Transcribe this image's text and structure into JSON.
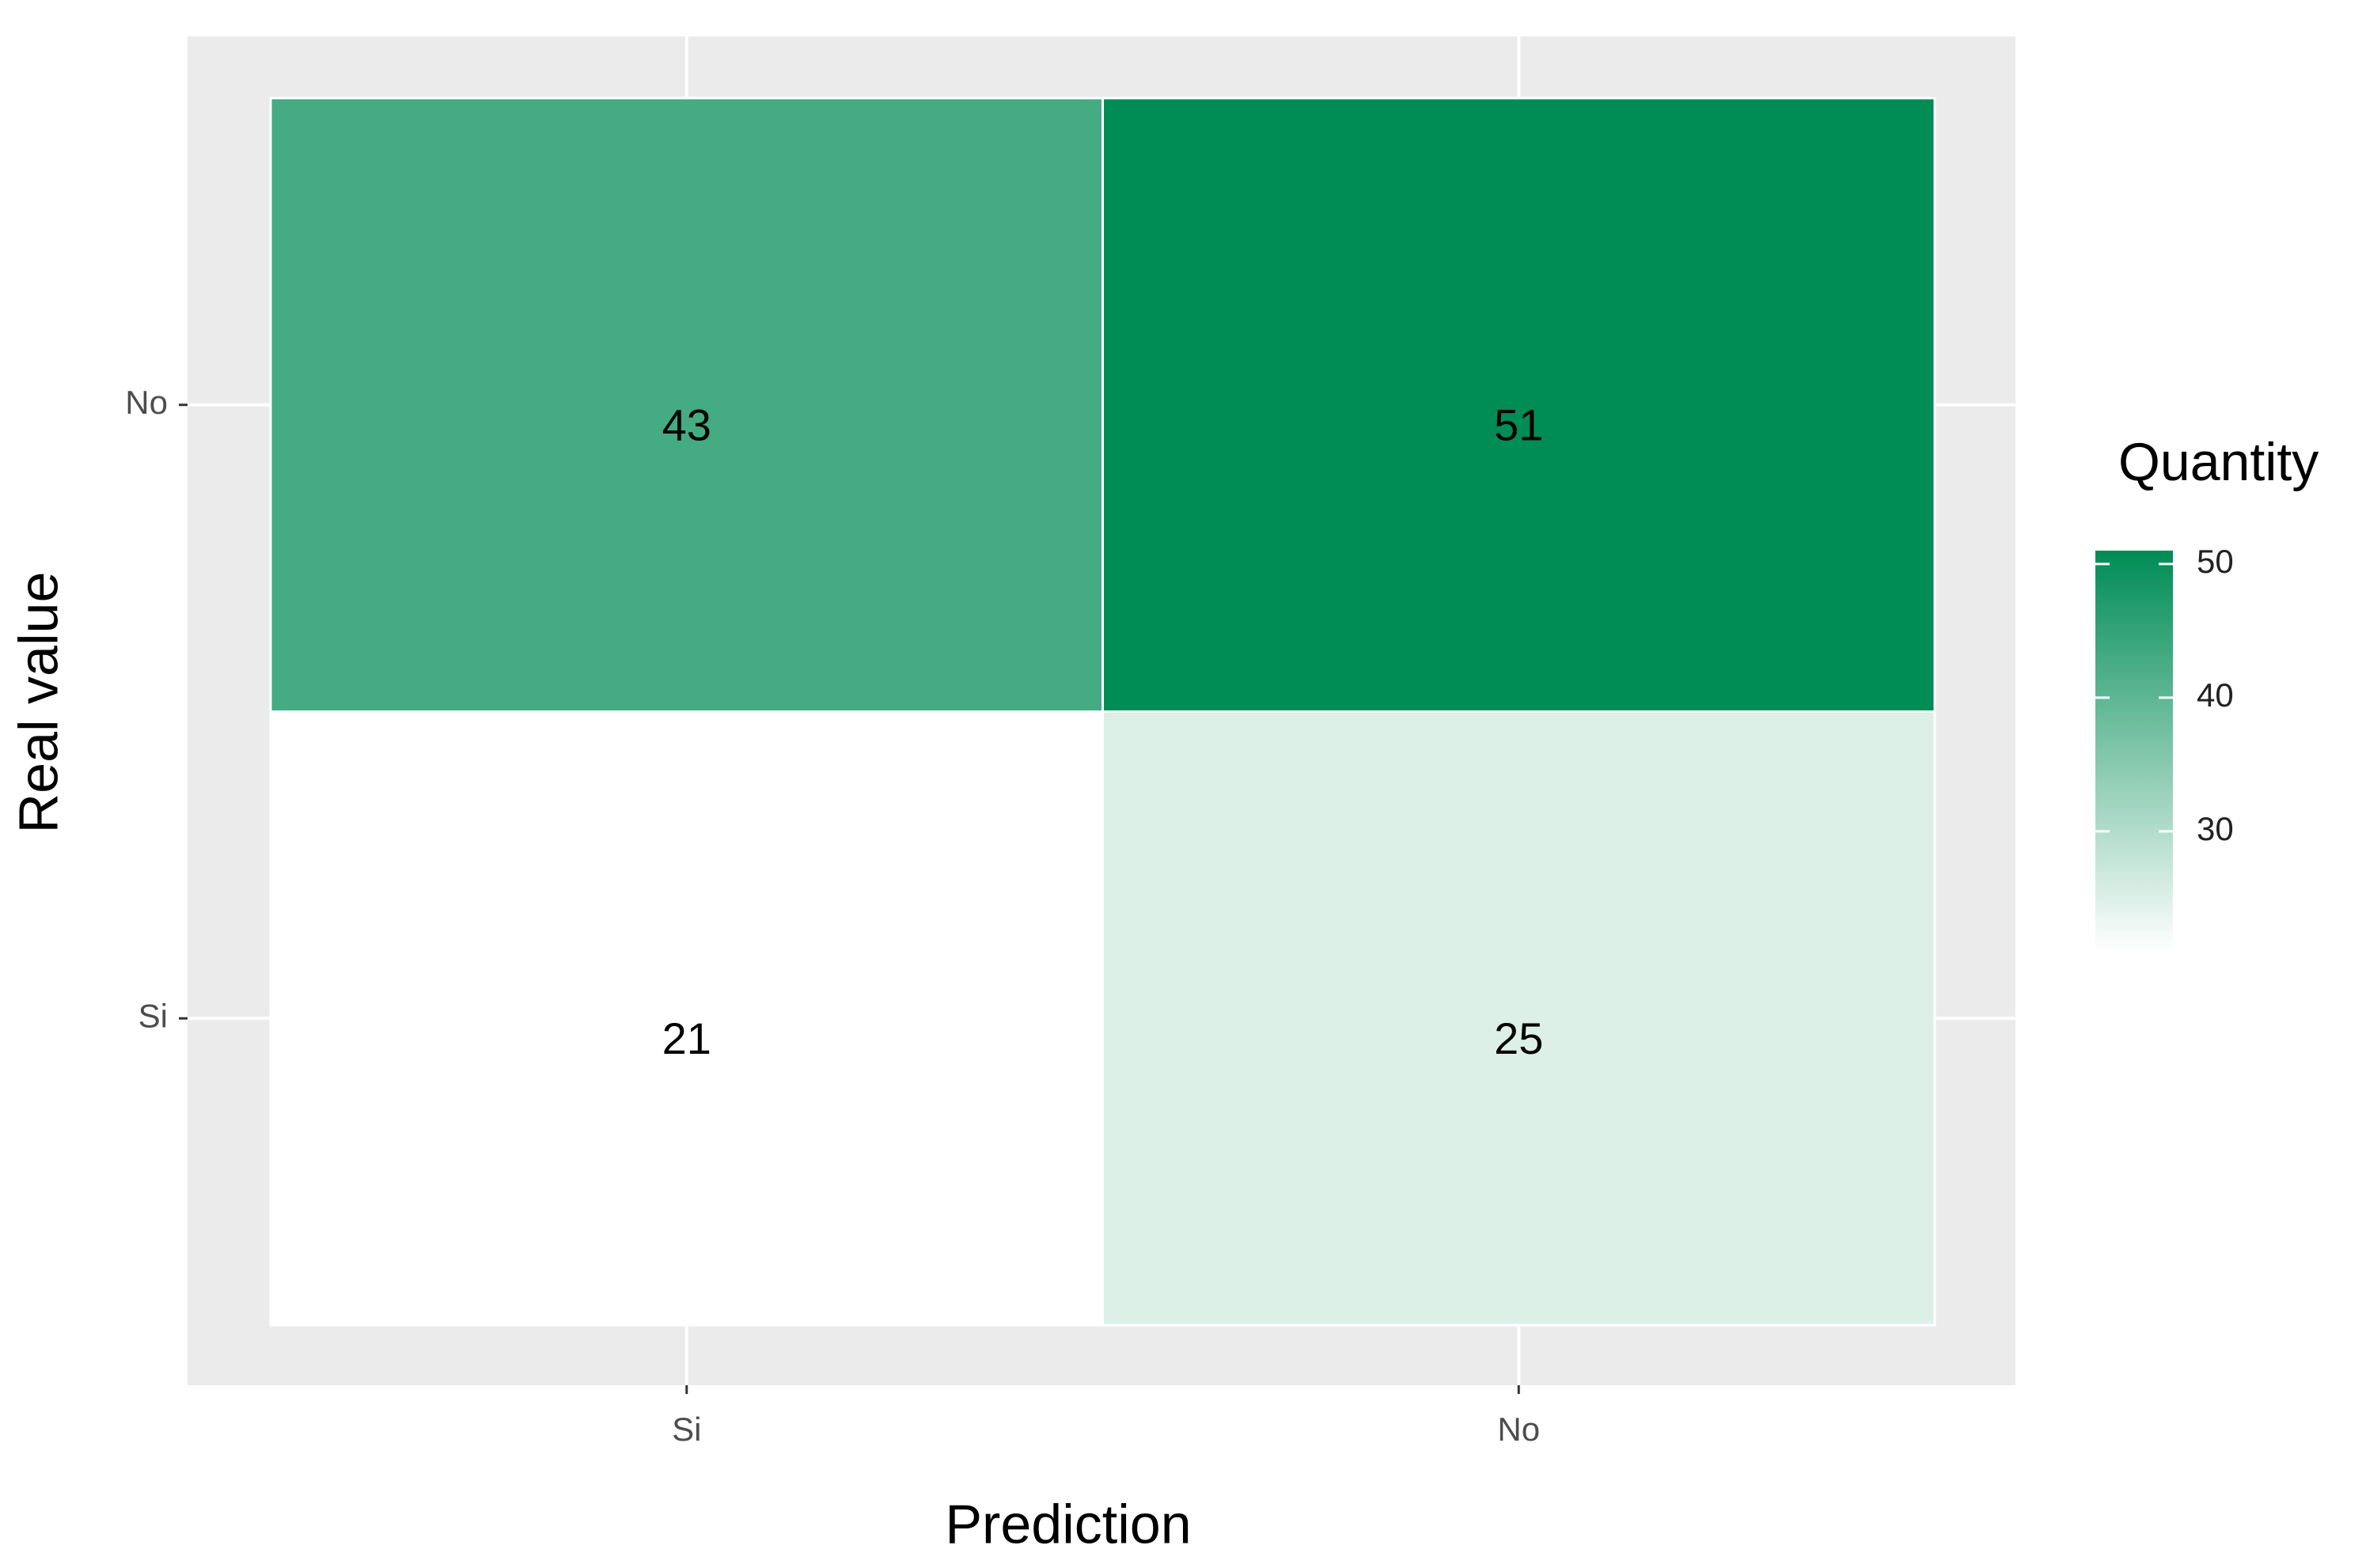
{
  "chart_data": {
    "type": "heatmap",
    "x_label": "Prediction",
    "y_label": "Real value",
    "x_categories": [
      "Si",
      "No"
    ],
    "y_categories": [
      "Si",
      "No"
    ],
    "values": [
      [
        21,
        25
      ],
      [
        43,
        51
      ]
    ],
    "legend_title": "Quantity",
    "clim": [
      21,
      51
    ],
    "colorbar_ticks": [
      30,
      40,
      50
    ],
    "colors": [
      "#ffffff",
      "#008c55"
    ]
  }
}
